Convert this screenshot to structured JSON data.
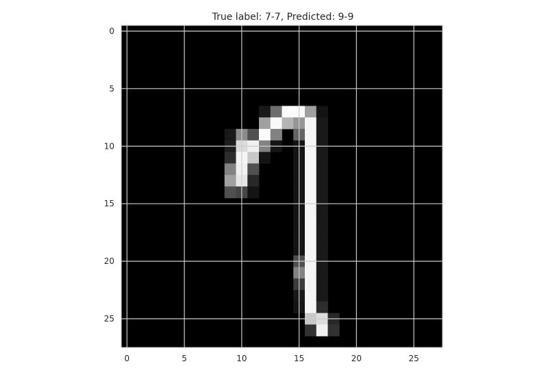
{
  "chart_data": {
    "type": "heatmap",
    "title": "True label: 7-7, Predicted: 9-9",
    "xlabel": "",
    "ylabel": "",
    "colormap": "gray",
    "grid": true,
    "xlim": [
      -0.5,
      27.5
    ],
    "ylim": [
      27.5,
      -0.5
    ],
    "xticks": [
      0,
      5,
      10,
      15,
      20,
      25
    ],
    "yticks": [
      0,
      5,
      10,
      15,
      20,
      25
    ],
    "image": {
      "rows": 28,
      "cols": 28,
      "value_range": [
        0,
        255
      ],
      "nonzero_pixels": [
        [
          7,
          12,
          25
        ],
        [
          7,
          13,
          110
        ],
        [
          7,
          14,
          250
        ],
        [
          7,
          15,
          250
        ],
        [
          7,
          16,
          160
        ],
        [
          7,
          17,
          20
        ],
        [
          8,
          12,
          160
        ],
        [
          8,
          13,
          250
        ],
        [
          8,
          14,
          180
        ],
        [
          8,
          15,
          150
        ],
        [
          8,
          16,
          245
        ],
        [
          8,
          17,
          25
        ],
        [
          9,
          9,
          25
        ],
        [
          9,
          10,
          140
        ],
        [
          9,
          11,
          80
        ],
        [
          9,
          12,
          250
        ],
        [
          9,
          13,
          130
        ],
        [
          9,
          15,
          100
        ],
        [
          9,
          16,
          245
        ],
        [
          9,
          17,
          25
        ],
        [
          10,
          9,
          30
        ],
        [
          10,
          10,
          220
        ],
        [
          10,
          11,
          240
        ],
        [
          10,
          12,
          130
        ],
        [
          10,
          13,
          20
        ],
        [
          10,
          15,
          20
        ],
        [
          10,
          16,
          245
        ],
        [
          10,
          17,
          25
        ],
        [
          11,
          9,
          45
        ],
        [
          11,
          10,
          245
        ],
        [
          11,
          11,
          200
        ],
        [
          11,
          12,
          20
        ],
        [
          11,
          15,
          20
        ],
        [
          11,
          16,
          245
        ],
        [
          11,
          17,
          25
        ],
        [
          12,
          9,
          130
        ],
        [
          12,
          10,
          240
        ],
        [
          12,
          11,
          80
        ],
        [
          12,
          15,
          20
        ],
        [
          12,
          16,
          245
        ],
        [
          12,
          17,
          25
        ],
        [
          13,
          9,
          160
        ],
        [
          13,
          10,
          230
        ],
        [
          13,
          11,
          40
        ],
        [
          13,
          15,
          20
        ],
        [
          13,
          16,
          245
        ],
        [
          13,
          17,
          25
        ],
        [
          14,
          9,
          80
        ],
        [
          14,
          10,
          70
        ],
        [
          14,
          11,
          20
        ],
        [
          14,
          15,
          20
        ],
        [
          14,
          16,
          245
        ],
        [
          14,
          17,
          25
        ],
        [
          15,
          15,
          20
        ],
        [
          15,
          16,
          245
        ],
        [
          15,
          17,
          25
        ],
        [
          16,
          15,
          20
        ],
        [
          16,
          16,
          245
        ],
        [
          16,
          17,
          25
        ],
        [
          17,
          15,
          20
        ],
        [
          17,
          16,
          245
        ],
        [
          17,
          17,
          25
        ],
        [
          18,
          15,
          20
        ],
        [
          18,
          16,
          245
        ],
        [
          18,
          17,
          25
        ],
        [
          19,
          15,
          20
        ],
        [
          19,
          16,
          245
        ],
        [
          19,
          17,
          25
        ],
        [
          20,
          15,
          80
        ],
        [
          20,
          16,
          245
        ],
        [
          20,
          17,
          25
        ],
        [
          21,
          15,
          130
        ],
        [
          21,
          16,
          245
        ],
        [
          21,
          17,
          25
        ],
        [
          22,
          15,
          60
        ],
        [
          22,
          16,
          245
        ],
        [
          22,
          17,
          25
        ],
        [
          23,
          15,
          25
        ],
        [
          23,
          16,
          245
        ],
        [
          23,
          17,
          25
        ],
        [
          24,
          15,
          20
        ],
        [
          24,
          16,
          245
        ],
        [
          24,
          17,
          45
        ],
        [
          25,
          16,
          200
        ],
        [
          25,
          17,
          220
        ],
        [
          25,
          18,
          40
        ],
        [
          26,
          16,
          50
        ],
        [
          26,
          17,
          240
        ],
        [
          26,
          18,
          50
        ]
      ]
    }
  }
}
